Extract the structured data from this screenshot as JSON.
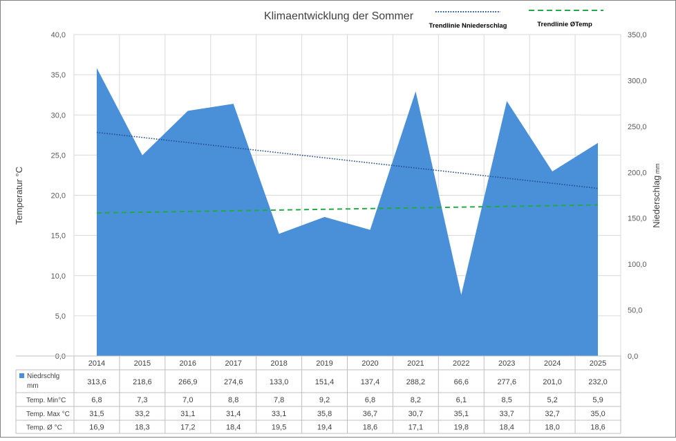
{
  "chart_data": {
    "type": "area",
    "title": "Klimaentwicklung der Sommer",
    "categories": [
      "2014",
      "2015",
      "2016",
      "2017",
      "2018",
      "2019",
      "2020",
      "2021",
      "2022",
      "2023",
      "2024",
      "2025"
    ],
    "left_axis": {
      "label": "Temperatur °C",
      "min": 0,
      "max": 40,
      "step": 5,
      "ticks": [
        "0,0",
        "5,0",
        "10,0",
        "15,0",
        "20,0",
        "25,0",
        "30,0",
        "35,0",
        "40,0"
      ]
    },
    "right_axis": {
      "label": "Niederschlag",
      "unit": "mm",
      "min": 0,
      "max": 350,
      "step": 50,
      "ticks": [
        "0,0",
        "50,0",
        "100,0",
        "150,0",
        "200,0",
        "250,0",
        "300,0",
        "350,0"
      ]
    },
    "grid": true,
    "legend_position": "top-right",
    "series": [
      {
        "name": "Niedrschlg mm",
        "name_lines": [
          "Niedrschlg",
          "mm"
        ],
        "kind": "area",
        "axis": "right",
        "color": "#4a90d9",
        "values": [
          313.6,
          218.6,
          266.9,
          274.6,
          133.0,
          151.4,
          137.4,
          288.2,
          66.6,
          277.6,
          201.0,
          232.0
        ],
        "labels": [
          "313,6",
          "218,6",
          "266,9",
          "274,6",
          "133,0",
          "151,4",
          "137,4",
          "288,2",
          "66,6",
          "277,6",
          "201,0",
          "232,0"
        ]
      }
    ],
    "trendlines": [
      {
        "name": "Trendlinie Nniederschlag",
        "axis": "right",
        "color": "#1f4e8c",
        "style": "dotted",
        "start": 243.5,
        "end": 182.5
      },
      {
        "name": "Trendlinie ØTemp",
        "axis": "left",
        "color": "#22aa44",
        "style": "dashed",
        "start": 17.8,
        "end": 18.8
      }
    ],
    "table_rows": [
      {
        "label": "Temp. Min°C",
        "labels": [
          "6,8",
          "7,3",
          "7,0",
          "8,8",
          "7,8",
          "9,2",
          "6,8",
          "8,2",
          "6,1",
          "8,5",
          "5,2",
          "5,9"
        ]
      },
      {
        "label": "Temp. Max °C",
        "labels": [
          "31,5",
          "33,2",
          "31,1",
          "31,4",
          "33,1",
          "35,8",
          "36,7",
          "30,7",
          "35,1",
          "33,7",
          "32,7",
          "35,0"
        ]
      },
      {
        "label": "Temp. Ø °C",
        "labels": [
          "16,9",
          "18,3",
          "17,2",
          "18,4",
          "19,5",
          "19,4",
          "18,6",
          "17,1",
          "19,8",
          "18,4",
          "18,0",
          "18,6"
        ]
      }
    ]
  }
}
